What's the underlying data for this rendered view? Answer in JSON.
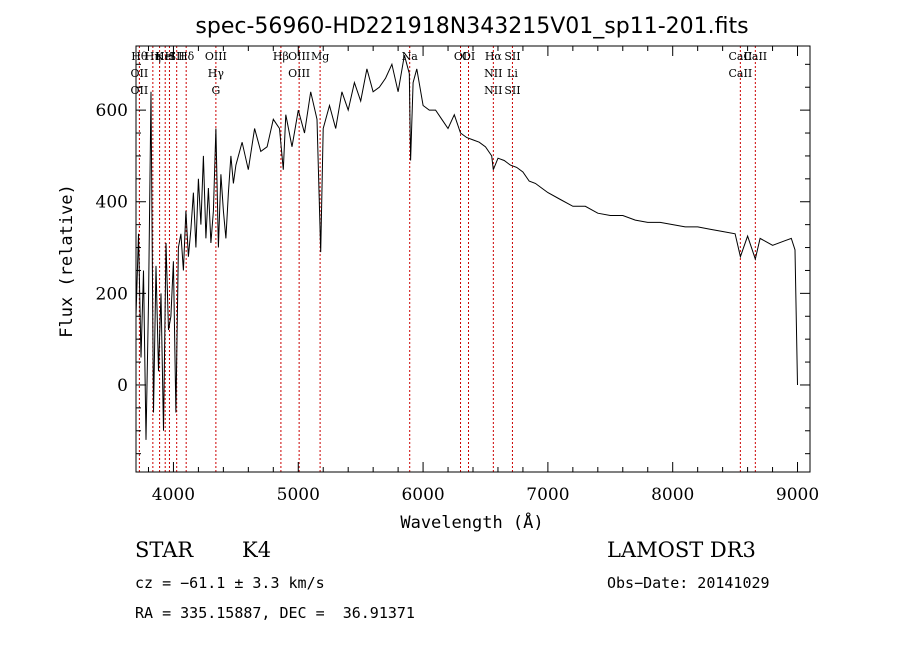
{
  "chart_data": {
    "type": "line",
    "title": "spec-56960-HD221918N343215V01_sp11-201.fits",
    "xlabel": "Wavelength (Å)",
    "ylabel": "Flux (relative)",
    "xlim": [
      3700,
      9100
    ],
    "ylim": [
      -190,
      740
    ],
    "xticks": [
      4000,
      5000,
      6000,
      7000,
      8000,
      9000
    ],
    "yticks": [
      0,
      200,
      400,
      600
    ],
    "line_color": "#000000",
    "marker_color": "#cc0000",
    "series": [
      {
        "name": "flux",
        "x": [
          3700,
          3720,
          3740,
          3760,
          3780,
          3800,
          3820,
          3840,
          3860,
          3880,
          3900,
          3920,
          3940,
          3960,
          3980,
          4000,
          4020,
          4040,
          4060,
          4080,
          4100,
          4120,
          4140,
          4160,
          4180,
          4200,
          4220,
          4240,
          4260,
          4280,
          4300,
          4320,
          4340,
          4360,
          4380,
          4400,
          4420,
          4440,
          4460,
          4480,
          4500,
          4550,
          4600,
          4650,
          4700,
          4750,
          4800,
          4850,
          4880,
          4900,
          4950,
          5000,
          5050,
          5100,
          5150,
          5180,
          5200,
          5250,
          5300,
          5350,
          5400,
          5450,
          5500,
          5550,
          5600,
          5650,
          5700,
          5750,
          5800,
          5850,
          5890,
          5900,
          5920,
          5950,
          6000,
          6050,
          6100,
          6150,
          6200,
          6250,
          6300,
          6350,
          6400,
          6450,
          6500,
          6550,
          6563,
          6600,
          6650,
          6700,
          6750,
          6800,
          6850,
          6900,
          6950,
          7000,
          7100,
          7200,
          7300,
          7400,
          7500,
          7600,
          7700,
          7800,
          7900,
          8000,
          8100,
          8200,
          8300,
          8400,
          8500,
          8542,
          8600,
          8662,
          8700,
          8800,
          8900,
          8950,
          8980,
          9000
        ],
        "y": [
          150,
          330,
          60,
          250,
          -120,
          180,
          640,
          -60,
          260,
          30,
          200,
          -100,
          310,
          120,
          150,
          270,
          -60,
          300,
          330,
          250,
          380,
          280,
          340,
          420,
          300,
          450,
          350,
          500,
          320,
          430,
          310,
          380,
          560,
          300,
          460,
          380,
          320,
          420,
          500,
          440,
          480,
          530,
          470,
          560,
          510,
          520,
          580,
          560,
          470,
          590,
          520,
          600,
          550,
          640,
          580,
          290,
          560,
          610,
          560,
          640,
          600,
          660,
          620,
          690,
          640,
          650,
          670,
          700,
          640,
          720,
          680,
          490,
          660,
          690,
          610,
          600,
          600,
          580,
          560,
          590,
          550,
          540,
          535,
          530,
          520,
          500,
          470,
          495,
          490,
          480,
          475,
          465,
          445,
          440,
          430,
          420,
          405,
          390,
          390,
          375,
          370,
          370,
          360,
          355,
          355,
          350,
          345,
          345,
          340,
          335,
          330,
          280,
          325,
          275,
          320,
          305,
          315,
          320,
          295,
          0
        ]
      }
    ],
    "spectral_lines": [
      {
        "labels": [
          "Hθ",
          "OII",
          "OII"
        ],
        "wave": 3727
      },
      {
        "labels": [
          "Hη"
        ],
        "wave": 3835
      },
      {
        "labels": [
          "K"
        ],
        "wave": 3889
      },
      {
        "labels": [
          "HeI"
        ],
        "wave": 3934
      },
      {
        "labels": [
          "H"
        ],
        "wave": 3968
      },
      {
        "labels": [
          "SII"
        ],
        "wave": 4026
      },
      {
        "labels": [
          "Hδ"
        ],
        "wave": 4102
      },
      {
        "labels": [
          "OIII",
          "Hγ",
          "G"
        ],
        "wave": 4340
      },
      {
        "labels": [
          "Hβ"
        ],
        "wave": 4861
      },
      {
        "labels": [
          "OIII",
          "OIII"
        ],
        "wave": 5007
      },
      {
        "labels": [
          "Mg"
        ],
        "wave": 5175
      },
      {
        "labels": [
          "Na"
        ],
        "wave": 5893
      },
      {
        "labels": [
          "OI"
        ],
        "wave": 6300
      },
      {
        "labels": [
          "OI"
        ],
        "wave": 6364
      },
      {
        "labels": [
          "Hα",
          "NII",
          "NII"
        ],
        "wave": 6563
      },
      {
        "labels": [
          "SII",
          "Li",
          "SII"
        ],
        "wave": 6716
      },
      {
        "labels": [
          "CaII",
          "CaII"
        ],
        "wave": 8542
      },
      {
        "labels": [
          "CaII"
        ],
        "wave": 8662
      }
    ]
  },
  "info": {
    "class": "STAR",
    "subclass": "K4",
    "cz": "cz = −61.1 ± 3.3 km/s",
    "coords": "RA = 335.15887, DEC =  36.91371",
    "survey": "LAMOST DR3",
    "obs_date": "Obs−Date: 20141029"
  }
}
